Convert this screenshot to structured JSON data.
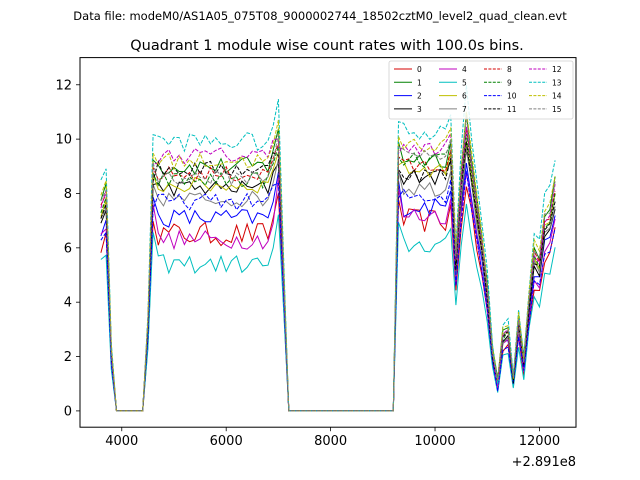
{
  "chart_data": {
    "type": "line",
    "suptitle": "Data file: modeM0/AS1A05_075T08_9000002744_18502cztM0_level2_quad_clean.evt",
    "title": "Quadrant 1 module wise count rates with 100.0s bins.",
    "xlabel": "",
    "ylabel": "",
    "x_offset_label": "+2.891e8",
    "xlim": [
      3200,
      12700
    ],
    "ylim": [
      -0.6,
      13.0
    ],
    "xticks": [
      4000,
      6000,
      8000,
      10000,
      12000
    ],
    "xtick_labels": [
      "4000",
      "6000",
      "8000",
      "10000",
      "12000"
    ],
    "yticks": [
      0,
      2,
      4,
      6,
      8,
      10,
      12
    ],
    "ytick_labels": [
      "0",
      "2",
      "4",
      "6",
      "8",
      "10",
      "12"
    ],
    "legend_position": "upper right",
    "legend_columns": 4,
    "grid": false,
    "segments": [
      {
        "x": [
          3600,
          3700,
          3800,
          3900,
          4000,
          4100,
          4200,
          4300,
          4400,
          4500,
          4600
        ],
        "shape": [
          0.75,
          0.8,
          0.22,
          0.0,
          0.0,
          0.0,
          0.0,
          0.0,
          0.0,
          0.32,
          0.9
        ]
      },
      {
        "x": [
          4600,
          6900
        ],
        "shape": "plateau"
      },
      {
        "x": [
          7000,
          7100,
          7200,
          7300,
          7400,
          7500,
          7600,
          7700,
          7800,
          7900,
          8000,
          8100,
          8200,
          8300,
          8400,
          8500,
          8600,
          8700,
          8800,
          8900,
          9000,
          9100,
          9200,
          9300
        ],
        "shape": [
          1.0,
          0.5,
          0.0,
          0.0,
          0.0,
          0.0,
          0.0,
          0.0,
          0.0,
          0.0,
          0.0,
          0.0,
          0.0,
          0.0,
          0.0,
          0.0,
          0.0,
          0.0,
          0.0,
          0.0,
          0.0,
          0.0,
          0.0,
          0.95
        ]
      },
      {
        "x": [
          9300,
          10300
        ],
        "shape": "plateau2"
      },
      {
        "x": [
          10300,
          10400,
          10500,
          10600,
          10700,
          10800,
          10900,
          11000,
          11100,
          11200,
          11300,
          11400,
          11500,
          11600,
          11700,
          11800,
          11900,
          12000,
          12100,
          12200,
          12300
        ],
        "shape": [
          0.95,
          0.55,
          0.85,
          1.05,
          0.9,
          0.75,
          0.62,
          0.45,
          0.22,
          0.1,
          0.28,
          0.3,
          0.12,
          0.33,
          0.18,
          0.4,
          0.58,
          0.55,
          0.7,
          0.72,
          0.82
        ]
      }
    ],
    "series": [
      {
        "name": "0",
        "color": "#d40000",
        "dash": "solid",
        "pre": 8.0,
        "plateau": 6.5,
        "plateau2": 7.0,
        "noise": 0.45
      },
      {
        "name": "1",
        "color": "#008000",
        "dash": "solid",
        "pre": 10.4,
        "plateau": 9.0,
        "plateau2": 9.3,
        "noise": 0.35
      },
      {
        "name": "2",
        "color": "#0000ff",
        "dash": "solid",
        "pre": 8.8,
        "plateau": 7.1,
        "plateau2": 7.5,
        "noise": 0.35
      },
      {
        "name": "3",
        "color": "#000000",
        "dash": "solid",
        "pre": 9.2,
        "plateau": 8.2,
        "plateau2": 8.6,
        "noise": 0.3
      },
      {
        "name": "4",
        "color": "#bf00bf",
        "dash": "solid",
        "pre": 8.5,
        "plateau": 6.3,
        "plateau2": 7.2,
        "noise": 0.35
      },
      {
        "name": "5",
        "color": "#00bfbf",
        "dash": "solid",
        "pre": 7.2,
        "plateau": 5.4,
        "plateau2": 6.1,
        "noise": 0.35
      },
      {
        "name": "6",
        "color": "#bfbf00",
        "dash": "solid",
        "pre": 9.6,
        "plateau": 8.3,
        "plateau2": 8.9,
        "noise": 0.3
      },
      {
        "name": "7",
        "color": "#808080",
        "dash": "solid",
        "pre": 9.3,
        "plateau": 7.8,
        "plateau2": 8.2,
        "noise": 0.3
      },
      {
        "name": "8",
        "color": "#d40000",
        "dash": "dashed",
        "pre": 9.9,
        "plateau": 8.7,
        "plateau2": 9.0,
        "noise": 0.3
      },
      {
        "name": "9",
        "color": "#008000",
        "dash": "dashed",
        "pre": 9.7,
        "plateau": 8.5,
        "plateau2": 9.2,
        "noise": 0.3
      },
      {
        "name": "10",
        "color": "#0000ff",
        "dash": "dashed",
        "pre": 8.3,
        "plateau": 7.7,
        "plateau2": 7.9,
        "noise": 0.3
      },
      {
        "name": "11",
        "color": "#000000",
        "dash": "dashed",
        "pre": 9.5,
        "plateau": 8.9,
        "plateau2": 8.7,
        "noise": 0.3
      },
      {
        "name": "12",
        "color": "#bf00bf",
        "dash": "dashed",
        "pre": 10.0,
        "plateau": 9.4,
        "plateau2": 9.6,
        "noise": 0.3
      },
      {
        "name": "13",
        "color": "#00bfbf",
        "dash": "dashed",
        "pre": 11.3,
        "plateau": 9.9,
        "plateau2": 10.3,
        "noise": 0.35
      },
      {
        "name": "14",
        "color": "#bfbf00",
        "dash": "dashed",
        "pre": 10.6,
        "plateau": 9.2,
        "plateau2": 9.8,
        "noise": 0.3
      },
      {
        "name": "15",
        "color": "#808080",
        "dash": "dashed",
        "pre": 10.2,
        "plateau": 8.6,
        "plateau2": 9.4,
        "noise": 0.3
      }
    ]
  }
}
